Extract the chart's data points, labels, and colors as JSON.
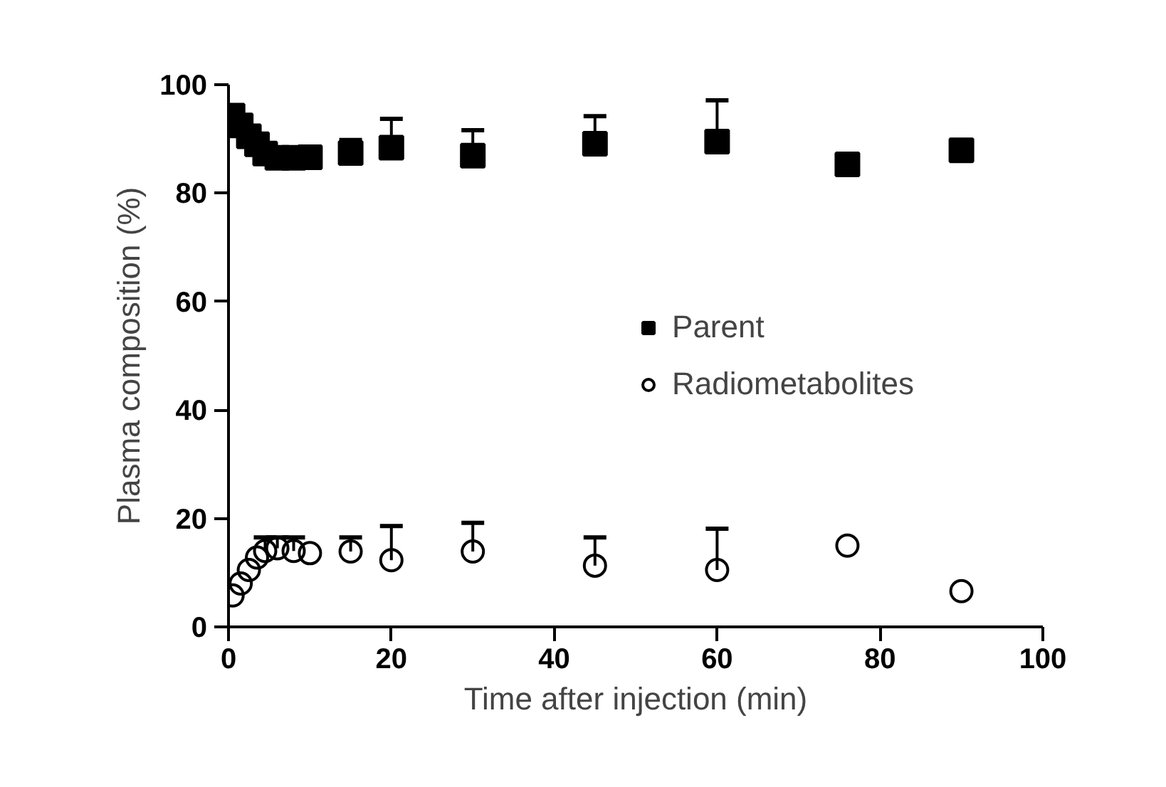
{
  "chart_data": {
    "type": "scatter",
    "xlabel": "Time after injection (min)",
    "ylabel": "Plasma composition (%)",
    "x": [
      0.5,
      1.5,
      2.5,
      3.5,
      4.5,
      6,
      8,
      10,
      15,
      20,
      30,
      45,
      60,
      76,
      90
    ],
    "series": [
      {
        "name": "Parent",
        "color": "#000000",
        "marker": "square",
        "values": [
          94.3,
          92.5,
          90.5,
          89,
          87.3,
          86.5,
          86.5,
          86.6,
          87.4,
          88.4,
          86.9,
          89.1,
          89.5,
          85.3,
          87.9
        ],
        "errors": [
          null,
          null,
          null,
          null,
          null,
          null,
          null,
          null,
          [
            87.4,
            89.8
          ],
          [
            88.4,
            93.7
          ],
          [
            86.9,
            91.6
          ],
          [
            89.1,
            94.2
          ],
          [
            89.5,
            97.1
          ],
          null,
          null
        ]
      },
      {
        "name": "Radiometabolites",
        "color": "#000000",
        "marker": "circle",
        "values": [
          5.8,
          8,
          10.5,
          12.8,
          14,
          14.5,
          14,
          13.6,
          13.9,
          12.3,
          13.9,
          11.3,
          10.5,
          15,
          6.6
        ],
        "errors": [
          null,
          null,
          null,
          null,
          [
            14,
            16.5
          ],
          [
            14.5,
            16.5
          ],
          [
            14,
            16.5
          ],
          null,
          [
            13.9,
            16.5
          ],
          [
            12.3,
            18.6
          ],
          [
            13.9,
            19.2
          ],
          [
            11.3,
            16.5
          ],
          [
            10.5,
            18.1
          ],
          null,
          null
        ]
      }
    ],
    "xlim": [
      0,
      100
    ],
    "xticks": [
      0,
      20,
      40,
      60,
      80,
      100
    ],
    "ylim": [
      0,
      100
    ],
    "yticks": [
      0,
      20,
      40,
      60,
      80,
      100
    ],
    "grid": false,
    "legend": "right"
  }
}
